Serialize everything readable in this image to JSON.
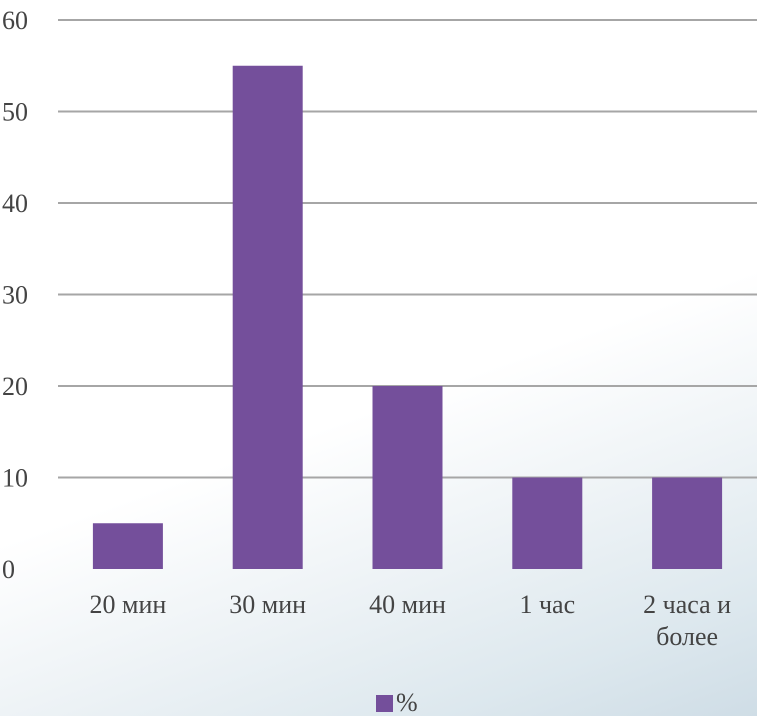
{
  "chart_data": {
    "type": "bar",
    "categories": [
      [
        "20 мин"
      ],
      [
        "30 мин"
      ],
      [
        "40 мин"
      ],
      [
        "1 час"
      ],
      [
        "2 часа и",
        "более"
      ]
    ],
    "series": [
      {
        "name": "%",
        "values": [
          5,
          55,
          20,
          10,
          10
        ]
      }
    ],
    "ylim": [
      0,
      60
    ],
    "yticks": [
      0,
      10,
      20,
      30,
      40,
      50,
      60
    ],
    "grid": true,
    "legend_position": "bottom",
    "bar_color": "#744f9b",
    "grid_color": "#a6a6a6"
  }
}
